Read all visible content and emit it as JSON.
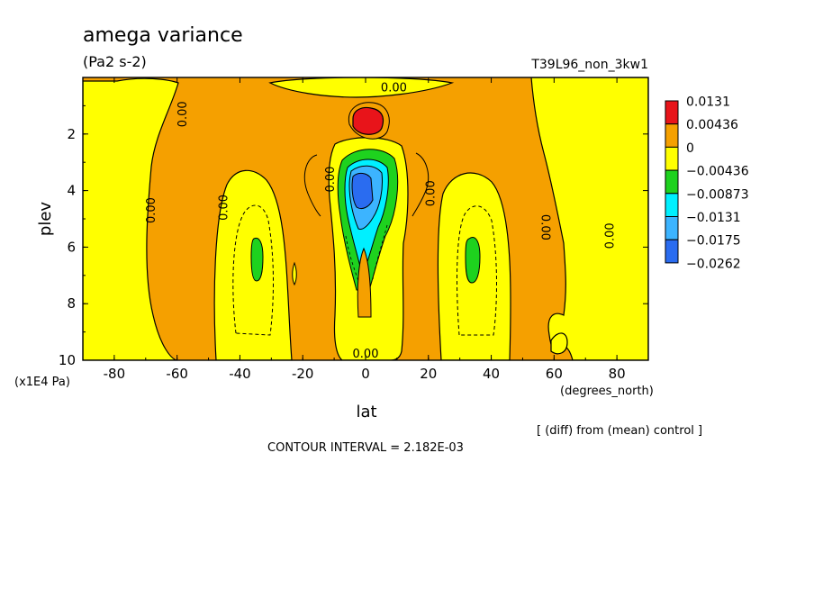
{
  "chart_data": {
    "type": "heatmap",
    "title": "amega variance",
    "subtitle": "(Pa2 s-2)",
    "run_label": "T39L96_non_3kw1",
    "xlabel": "lat",
    "xunits": "(degrees_north)",
    "ylabel": "plev",
    "yunits": "(x1E4 Pa)",
    "xlim": [
      -90,
      90
    ],
    "ylim": [
      10,
      0
    ],
    "xticks": [
      "-80",
      "-60",
      "-40",
      "-20",
      "0",
      "20",
      "40",
      "60",
      "80"
    ],
    "xtick_values": [
      -80,
      -60,
      -40,
      -20,
      0,
      20,
      40,
      60,
      80
    ],
    "yticks": [
      "2",
      "4",
      "6",
      "8",
      "10"
    ],
    "ytick_values": [
      2,
      4,
      6,
      8,
      10
    ],
    "legend_placement": "right",
    "legend_levels": [
      "0.0131",
      "0.00436",
      "0",
      "−0.00436",
      "−0.00873",
      "−0.0131",
      "−0.0175",
      "−0.0262"
    ],
    "legend_colors": [
      "#e8141a",
      "#f5a000",
      "#ffff00",
      "#1ed21e",
      "#00f0ff",
      "#3cb4ff",
      "#2a6cf0"
    ],
    "contour_labels": [
      {
        "text": "0.00",
        "lat": 9,
        "plev": 0.5
      },
      {
        "text": "0.00",
        "lat": -57,
        "plev": 1.3
      },
      {
        "text": "0.00",
        "lat": -67,
        "plev": 4.7
      },
      {
        "text": "0.00",
        "lat": -44,
        "plev": 4.6
      },
      {
        "text": "0.00",
        "lat": -10,
        "plev": 3.6
      },
      {
        "text": "0.00",
        "lat": 22,
        "plev": 4.1
      },
      {
        "text": "0.00",
        "lat": 56,
        "plev": 5.3
      },
      {
        "text": "0.00",
        "lat": 79,
        "plev": 5.6
      },
      {
        "text": "0.00",
        "lat": 0,
        "plev": 9.9
      }
    ],
    "annotation_diff": "[ (diff) from (mean) control ]",
    "annotation_interval": "CONTOUR INTERVAL = 2.182E-03"
  }
}
